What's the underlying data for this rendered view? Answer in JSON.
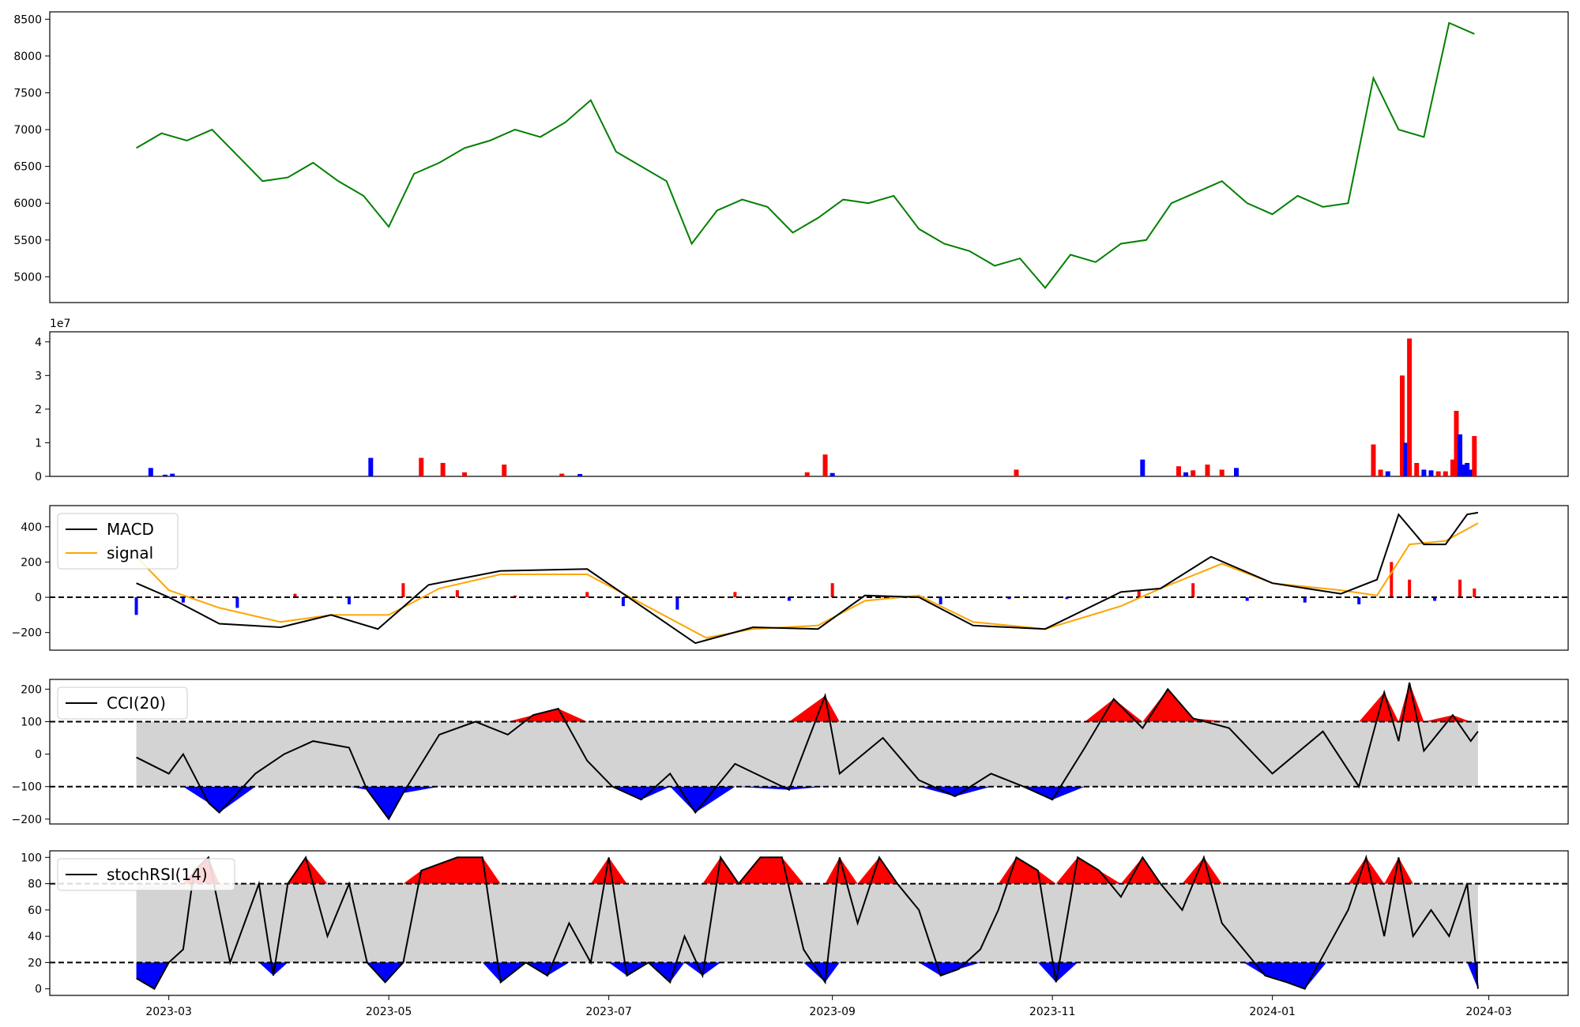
{
  "chart_data": [
    {
      "type": "line",
      "ylim": [
        4650,
        8600
      ],
      "yticks": [
        5000,
        5500,
        6000,
        6500,
        7000,
        7500,
        8000,
        8500
      ],
      "colors": {
        "price": "#008000"
      },
      "x": [
        "2023-02-20",
        "2023-02-27",
        "2023-03-06",
        "2023-03-13",
        "2023-03-20",
        "2023-03-27",
        "2023-04-03",
        "2023-04-10",
        "2023-04-17",
        "2023-04-24",
        "2023-05-01",
        "2023-05-08",
        "2023-05-15",
        "2023-05-22",
        "2023-05-29",
        "2023-06-05",
        "2023-06-12",
        "2023-06-19",
        "2023-06-26",
        "2023-07-03",
        "2023-07-10",
        "2023-07-17",
        "2023-07-24",
        "2023-07-31",
        "2023-08-07",
        "2023-08-14",
        "2023-08-21",
        "2023-08-28",
        "2023-09-04",
        "2023-09-11",
        "2023-09-18",
        "2023-09-25",
        "2023-10-02",
        "2023-10-09",
        "2023-10-16",
        "2023-10-23",
        "2023-10-30",
        "2023-11-06",
        "2023-11-13",
        "2023-11-20",
        "2023-11-27",
        "2023-12-04",
        "2023-12-11",
        "2023-12-18",
        "2023-12-25",
        "2024-01-01",
        "2024-01-08",
        "2024-01-15",
        "2024-01-22",
        "2024-01-29",
        "2024-02-05",
        "2024-02-12",
        "2024-02-19",
        "2024-02-26"
      ],
      "values": [
        6750,
        6950,
        6850,
        7000,
        6650,
        6300,
        6350,
        6550,
        6300,
        6100,
        5680,
        6400,
        6550,
        6750,
        6850,
        7000,
        6900,
        7100,
        7400,
        6700,
        6500,
        6300,
        5450,
        5900,
        6050,
        5950,
        5600,
        5800,
        6050,
        6000,
        6100,
        5650,
        5450,
        5350,
        5150,
        5250,
        4850,
        5300,
        5200,
        5450,
        5500,
        6000,
        6150,
        6300,
        6000,
        5850,
        6100,
        5950,
        6000,
        7700,
        7000,
        6900,
        8450,
        8300
      ]
    },
    {
      "type": "bar",
      "exponent_label": "1e7",
      "ylim": [
        0,
        4.3
      ],
      "yticks": [
        0,
        1,
        2,
        3,
        4
      ],
      "colors": {
        "up": "#ff0000",
        "down": "#0000ff"
      },
      "bars": [
        {
          "x": "2023-02-24",
          "v": 0.25,
          "c": "down"
        },
        {
          "x": "2023-02-28",
          "v": 0.05,
          "c": "down"
        },
        {
          "x": "2023-03-02",
          "v": 0.08,
          "c": "down"
        },
        {
          "x": "2023-04-26",
          "v": 0.55,
          "c": "down"
        },
        {
          "x": "2023-05-10",
          "v": 0.55,
          "c": "up"
        },
        {
          "x": "2023-05-16",
          "v": 0.4,
          "c": "up"
        },
        {
          "x": "2023-05-22",
          "v": 0.12,
          "c": "up"
        },
        {
          "x": "2023-06-02",
          "v": 0.35,
          "c": "up"
        },
        {
          "x": "2023-06-18",
          "v": 0.08,
          "c": "up"
        },
        {
          "x": "2023-06-23",
          "v": 0.07,
          "c": "down"
        },
        {
          "x": "2023-08-25",
          "v": 0.12,
          "c": "up"
        },
        {
          "x": "2023-08-30",
          "v": 0.65,
          "c": "up"
        },
        {
          "x": "2023-09-01",
          "v": 0.1,
          "c": "down"
        },
        {
          "x": "2023-10-22",
          "v": 0.2,
          "c": "up"
        },
        {
          "x": "2023-11-26",
          "v": 0.5,
          "c": "down"
        },
        {
          "x": "2023-12-06",
          "v": 0.3,
          "c": "up"
        },
        {
          "x": "2023-12-08",
          "v": 0.12,
          "c": "down"
        },
        {
          "x": "2023-12-10",
          "v": 0.18,
          "c": "up"
        },
        {
          "x": "2023-12-14",
          "v": 0.35,
          "c": "up"
        },
        {
          "x": "2023-12-18",
          "v": 0.2,
          "c": "up"
        },
        {
          "x": "2023-12-22",
          "v": 0.25,
          "c": "down"
        },
        {
          "x": "2024-01-29",
          "v": 0.95,
          "c": "up"
        },
        {
          "x": "2024-01-31",
          "v": 0.2,
          "c": "up"
        },
        {
          "x": "2024-02-02",
          "v": 0.15,
          "c": "down"
        },
        {
          "x": "2024-02-06",
          "v": 3.0,
          "c": "up"
        },
        {
          "x": "2024-02-07",
          "v": 1.0,
          "c": "down"
        },
        {
          "x": "2024-02-08",
          "v": 4.1,
          "c": "up"
        },
        {
          "x": "2024-02-10",
          "v": 0.4,
          "c": "up"
        },
        {
          "x": "2024-02-12",
          "v": 0.2,
          "c": "down"
        },
        {
          "x": "2024-02-14",
          "v": 0.18,
          "c": "down"
        },
        {
          "x": "2024-02-16",
          "v": 0.15,
          "c": "up"
        },
        {
          "x": "2024-02-18",
          "v": 0.15,
          "c": "up"
        },
        {
          "x": "2024-02-20",
          "v": 0.5,
          "c": "up"
        },
        {
          "x": "2024-02-21",
          "v": 1.95,
          "c": "up"
        },
        {
          "x": "2024-02-22",
          "v": 1.25,
          "c": "down"
        },
        {
          "x": "2024-02-23",
          "v": 0.35,
          "c": "down"
        },
        {
          "x": "2024-02-24",
          "v": 0.4,
          "c": "down"
        },
        {
          "x": "2024-02-25",
          "v": 0.2,
          "c": "down"
        },
        {
          "x": "2024-02-26",
          "v": 1.2,
          "c": "up"
        }
      ]
    },
    {
      "type": "line",
      "ylim": [
        -300,
        520
      ],
      "yticks": [
        -200,
        0,
        200,
        400
      ],
      "zero_line": 0,
      "legend": "top-left",
      "colors": {
        "macd": "#000000",
        "signal": "#ffa500",
        "hist_up": "#ff0000",
        "hist_down": "#0000ff"
      },
      "series": [
        {
          "name": "MACD",
          "x": [
            "2023-02-20",
            "2023-03-01",
            "2023-03-15",
            "2023-04-01",
            "2023-04-15",
            "2023-04-28",
            "2023-05-12",
            "2023-06-01",
            "2023-06-25",
            "2023-07-25",
            "2023-08-10",
            "2023-08-28",
            "2023-09-10",
            "2023-09-25",
            "2023-10-10",
            "2023-10-30",
            "2023-11-20",
            "2023-12-01",
            "2023-12-15",
            "2024-01-01",
            "2024-01-20",
            "2024-01-30",
            "2024-02-05",
            "2024-02-12",
            "2024-02-18",
            "2024-02-24",
            "2024-02-27"
          ],
          "values": [
            80,
            0,
            -150,
            -170,
            -100,
            -180,
            70,
            150,
            160,
            -260,
            -170,
            -180,
            10,
            0,
            -160,
            -180,
            30,
            50,
            230,
            80,
            20,
            100,
            470,
            300,
            300,
            470,
            480
          ]
        },
        {
          "name": "signal",
          "x": [
            "2023-02-20",
            "2023-03-01",
            "2023-03-15",
            "2023-04-01",
            "2023-04-15",
            "2023-05-01",
            "2023-05-15",
            "2023-06-01",
            "2023-06-25",
            "2023-07-28",
            "2023-08-10",
            "2023-08-28",
            "2023-09-10",
            "2023-09-25",
            "2023-10-10",
            "2023-10-30",
            "2023-11-20",
            "2023-12-01",
            "2023-12-18",
            "2024-01-01",
            "2024-01-20",
            "2024-01-30",
            "2024-02-08",
            "2024-02-18",
            "2024-02-27"
          ],
          "values": [
            230,
            40,
            -60,
            -140,
            -100,
            -100,
            50,
            130,
            130,
            -230,
            -180,
            -160,
            -20,
            10,
            -140,
            -180,
            -50,
            50,
            190,
            80,
            40,
            10,
            300,
            320,
            420
          ]
        }
      ],
      "histogram": {
        "x": [
          "2023-02-20",
          "2023-03-05",
          "2023-03-20",
          "2023-04-05",
          "2023-04-20",
          "2023-05-05",
          "2023-05-20",
          "2023-06-05",
          "2023-06-25",
          "2023-07-05",
          "2023-07-20",
          "2023-08-05",
          "2023-08-20",
          "2023-09-01",
          "2023-09-15",
          "2023-10-01",
          "2023-10-20",
          "2023-11-05",
          "2023-11-25",
          "2023-12-10",
          "2023-12-25",
          "2024-01-10",
          "2024-01-25",
          "2024-02-03",
          "2024-02-08",
          "2024-02-15",
          "2024-02-22",
          "2024-02-26"
        ],
        "values": [
          -100,
          -30,
          -60,
          20,
          -40,
          80,
          40,
          10,
          30,
          -50,
          -70,
          30,
          -20,
          80,
          10,
          -40,
          -10,
          -10,
          40,
          80,
          -20,
          -30,
          -40,
          200,
          100,
          -20,
          100,
          50
        ]
      }
    },
    {
      "type": "area",
      "ylim": [
        -215,
        230
      ],
      "yticks": [
        -200,
        -100,
        0,
        100,
        200
      ],
      "bands": [
        100,
        -100
      ],
      "legend": "top-left",
      "colors": {
        "line": "#000000",
        "band": "#d3d3d3",
        "over": "#ff0000",
        "under": "#0000ff"
      },
      "series": [
        {
          "name": "CCI(20)",
          "x": [
            "2023-02-20",
            "2023-03-01",
            "2023-03-05",
            "2023-03-12",
            "2023-03-15",
            "2023-03-25",
            "2023-04-02",
            "2023-04-10",
            "2023-04-20",
            "2023-04-25",
            "2023-05-01",
            "2023-05-05",
            "2023-05-15",
            "2023-05-25",
            "2023-06-03",
            "2023-06-10",
            "2023-06-17",
            "2023-06-25",
            "2023-07-02",
            "2023-07-10",
            "2023-07-18",
            "2023-07-25",
            "2023-08-05",
            "2023-08-20",
            "2023-08-30",
            "2023-09-03",
            "2023-09-15",
            "2023-09-25",
            "2023-10-05",
            "2023-10-15",
            "2023-10-24",
            "2023-11-01",
            "2023-11-10",
            "2023-11-18",
            "2023-11-26",
            "2023-12-03",
            "2023-12-10",
            "2023-12-20",
            "2024-01-01",
            "2024-01-15",
            "2024-01-25",
            "2024-02-01",
            "2024-02-05",
            "2024-02-08",
            "2024-02-12",
            "2024-02-20",
            "2024-02-25",
            "2024-02-27"
          ],
          "values": [
            -10,
            -60,
            0,
            -150,
            -180,
            -60,
            0,
            40,
            20,
            -110,
            -200,
            -120,
            60,
            100,
            60,
            120,
            140,
            -20,
            -100,
            -140,
            -60,
            -180,
            -30,
            -110,
            180,
            -60,
            50,
            -80,
            -130,
            -60,
            -100,
            -140,
            20,
            170,
            80,
            200,
            110,
            80,
            -60,
            70,
            -100,
            190,
            40,
            220,
            10,
            120,
            40,
            70
          ]
        }
      ]
    },
    {
      "type": "area",
      "ylim": [
        -5,
        105
      ],
      "yticks": [
        0,
        20,
        40,
        60,
        80,
        100
      ],
      "bands": [
        80,
        20
      ],
      "legend": "top-left",
      "colors": {
        "line": "#000000",
        "band": "#d3d3d3",
        "over": "#ff0000",
        "under": "#0000ff"
      },
      "series": [
        {
          "name": "stochRSI(14)",
          "x": [
            "2023-02-20",
            "2023-02-25",
            "2023-03-01",
            "2023-03-05",
            "2023-03-08",
            "2023-03-12",
            "2023-03-15",
            "2023-03-18",
            "2023-03-22",
            "2023-03-26",
            "2023-03-30",
            "2023-04-03",
            "2023-04-08",
            "2023-04-14",
            "2023-04-20",
            "2023-04-25",
            "2023-04-30",
            "2023-05-05",
            "2023-05-10",
            "2023-05-15",
            "2023-05-20",
            "2023-05-27",
            "2023-06-01",
            "2023-06-08",
            "2023-06-14",
            "2023-06-20",
            "2023-06-26",
            "2023-07-01",
            "2023-07-06",
            "2023-07-12",
            "2023-07-18",
            "2023-07-22",
            "2023-07-27",
            "2023-08-01",
            "2023-08-06",
            "2023-08-12",
            "2023-08-18",
            "2023-08-24",
            "2023-08-30",
            "2023-09-03",
            "2023-09-08",
            "2023-09-14",
            "2023-09-19",
            "2023-09-25",
            "2023-10-01",
            "2023-10-06",
            "2023-10-12",
            "2023-10-17",
            "2023-10-22",
            "2023-10-28",
            "2023-11-02",
            "2023-11-08",
            "2023-11-14",
            "2023-11-20",
            "2023-11-26",
            "2023-12-01",
            "2023-12-07",
            "2023-12-13",
            "2023-12-18",
            "2023-12-24",
            "2023-12-30",
            "2024-01-05",
            "2024-01-10",
            "2024-01-16",
            "2024-01-22",
            "2024-01-27",
            "2024-02-01",
            "2024-02-05",
            "2024-02-09",
            "2024-02-14",
            "2024-02-19",
            "2024-02-24",
            "2024-02-27"
          ],
          "values": [
            8,
            0,
            20,
            30,
            90,
            100,
            60,
            20,
            50,
            80,
            10,
            80,
            100,
            40,
            80,
            20,
            5,
            20,
            90,
            95,
            100,
            100,
            5,
            20,
            10,
            50,
            20,
            100,
            10,
            20,
            5,
            40,
            10,
            100,
            80,
            100,
            100,
            30,
            5,
            100,
            50,
            100,
            80,
            60,
            10,
            15,
            30,
            60,
            100,
            90,
            5,
            100,
            90,
            70,
            100,
            80,
            60,
            100,
            50,
            30,
            10,
            5,
            0,
            30,
            60,
            100,
            40,
            100,
            40,
            60,
            40,
            80,
            0
          ]
        }
      ]
    }
  ],
  "x_axis": {
    "ticks": [
      "2023-03",
      "2023-05",
      "2023-07",
      "2023-09",
      "2023-11",
      "2024-01",
      "2024-03"
    ],
    "range": [
      "2023-01-27",
      "2024-03-23"
    ]
  }
}
